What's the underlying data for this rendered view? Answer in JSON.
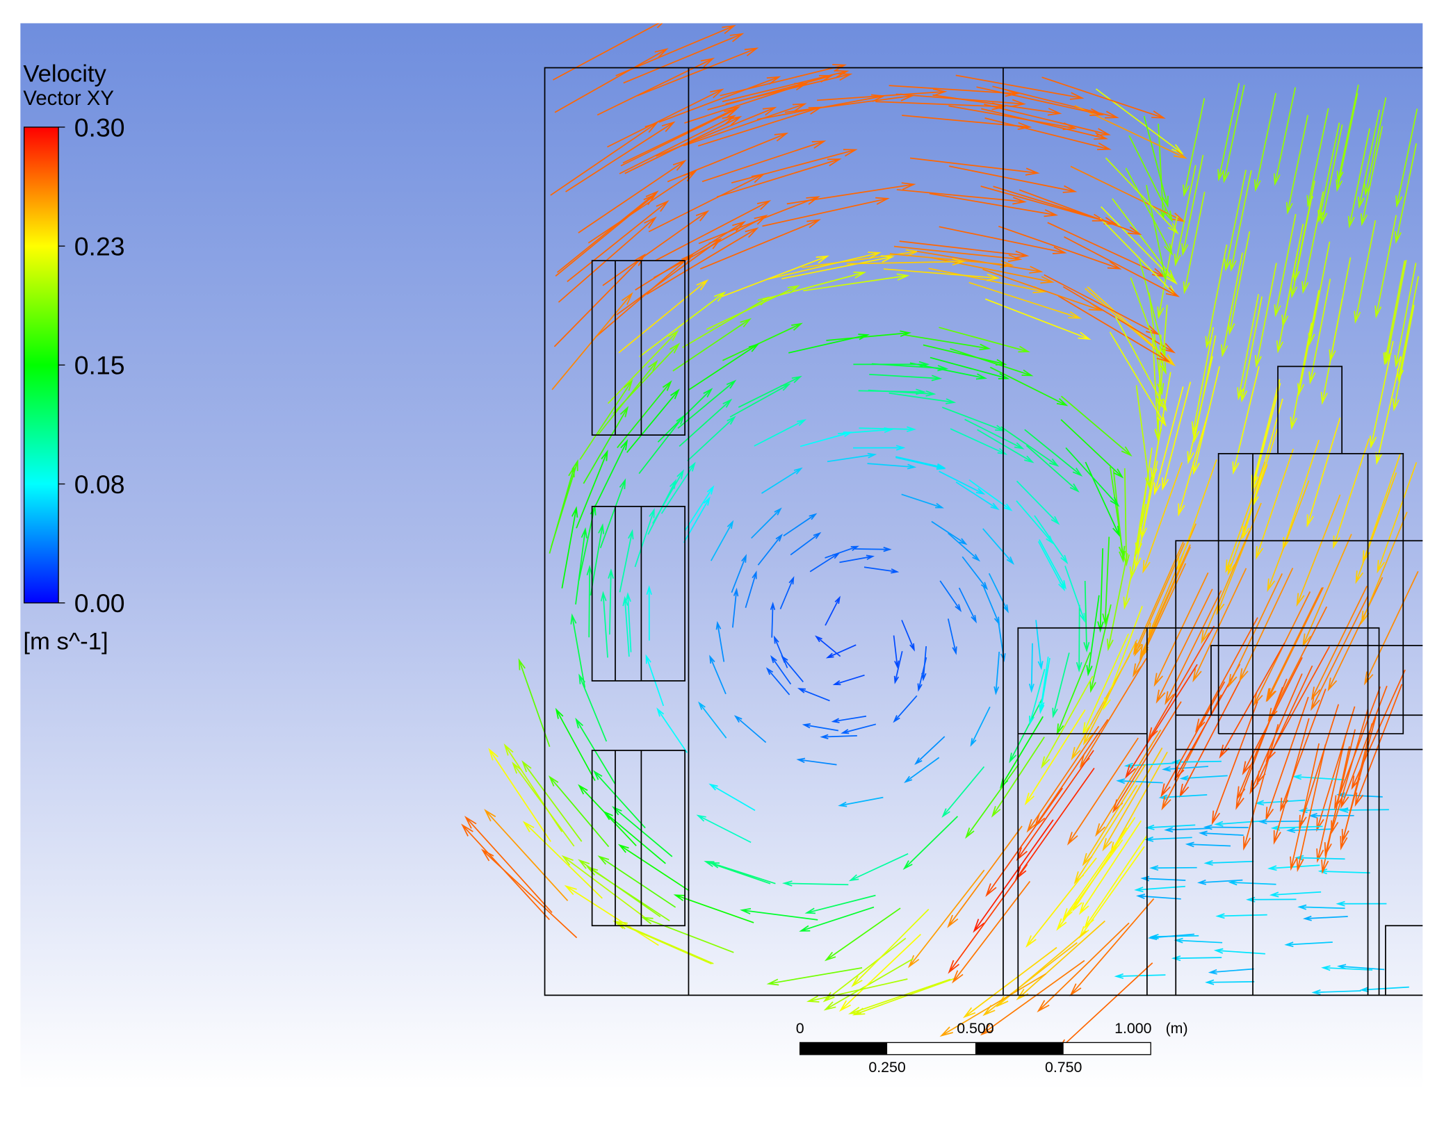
{
  "legend": {
    "title": "Velocity",
    "subtitle": "Vector XY",
    "ticks": [
      "0.30",
      "0.23",
      "0.15",
      "0.08",
      "0.00"
    ],
    "unit": "[m s^-1]"
  },
  "scale_bar": {
    "top_labels": [
      "0",
      "0.500",
      "1.000"
    ],
    "bottom_labels": [
      "0.250",
      "0.750"
    ],
    "unit": "(m)"
  }
}
